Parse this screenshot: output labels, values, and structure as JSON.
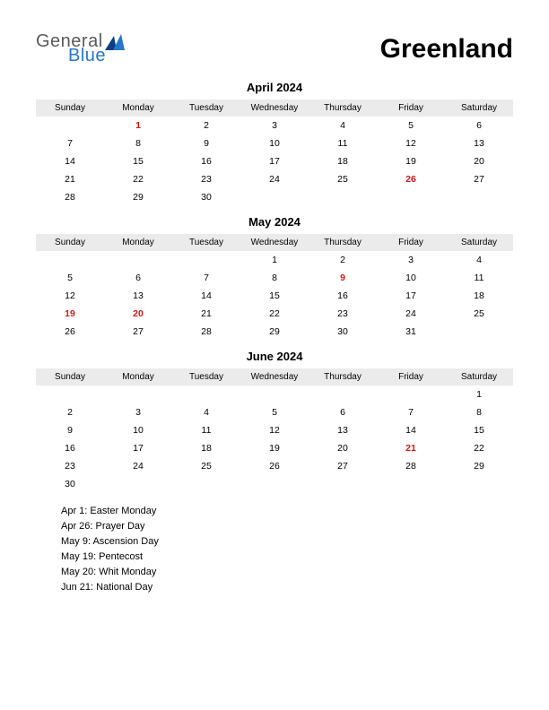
{
  "logo": {
    "text1": "General",
    "text2": "Blue"
  },
  "country": "Greenland",
  "weekday_headers": [
    "Sunday",
    "Monday",
    "Tuesday",
    "Wednesday",
    "Thursday",
    "Friday",
    "Saturday"
  ],
  "colors": {
    "holiday": "#d41616",
    "header_bg": "#ebebeb",
    "logo_gray": "#5a5a5a",
    "logo_blue": "#2776c7",
    "logo_triangle1": "#0b4086",
    "logo_triangle2": "#2776c7"
  },
  "months": [
    {
      "title": "April 2024",
      "weeks": [
        [
          {
            "d": ""
          },
          {
            "d": "1",
            "h": true
          },
          {
            "d": "2"
          },
          {
            "d": "3"
          },
          {
            "d": "4"
          },
          {
            "d": "5"
          },
          {
            "d": "6"
          }
        ],
        [
          {
            "d": "7"
          },
          {
            "d": "8"
          },
          {
            "d": "9"
          },
          {
            "d": "10"
          },
          {
            "d": "11"
          },
          {
            "d": "12"
          },
          {
            "d": "13"
          }
        ],
        [
          {
            "d": "14"
          },
          {
            "d": "15"
          },
          {
            "d": "16"
          },
          {
            "d": "17"
          },
          {
            "d": "18"
          },
          {
            "d": "19"
          },
          {
            "d": "20"
          }
        ],
        [
          {
            "d": "21"
          },
          {
            "d": "22"
          },
          {
            "d": "23"
          },
          {
            "d": "24"
          },
          {
            "d": "25"
          },
          {
            "d": "26",
            "h": true
          },
          {
            "d": "27"
          }
        ],
        [
          {
            "d": "28"
          },
          {
            "d": "29"
          },
          {
            "d": "30"
          },
          {
            "d": ""
          },
          {
            "d": ""
          },
          {
            "d": ""
          },
          {
            "d": ""
          }
        ]
      ]
    },
    {
      "title": "May 2024",
      "weeks": [
        [
          {
            "d": ""
          },
          {
            "d": ""
          },
          {
            "d": ""
          },
          {
            "d": "1"
          },
          {
            "d": "2"
          },
          {
            "d": "3"
          },
          {
            "d": "4"
          }
        ],
        [
          {
            "d": "5"
          },
          {
            "d": "6"
          },
          {
            "d": "7"
          },
          {
            "d": "8"
          },
          {
            "d": "9",
            "h": true
          },
          {
            "d": "10"
          },
          {
            "d": "11"
          }
        ],
        [
          {
            "d": "12"
          },
          {
            "d": "13"
          },
          {
            "d": "14"
          },
          {
            "d": "15"
          },
          {
            "d": "16"
          },
          {
            "d": "17"
          },
          {
            "d": "18"
          }
        ],
        [
          {
            "d": "19",
            "h": true
          },
          {
            "d": "20",
            "h": true
          },
          {
            "d": "21"
          },
          {
            "d": "22"
          },
          {
            "d": "23"
          },
          {
            "d": "24"
          },
          {
            "d": "25"
          }
        ],
        [
          {
            "d": "26"
          },
          {
            "d": "27"
          },
          {
            "d": "28"
          },
          {
            "d": "29"
          },
          {
            "d": "30"
          },
          {
            "d": "31"
          },
          {
            "d": ""
          }
        ]
      ]
    },
    {
      "title": "June 2024",
      "weeks": [
        [
          {
            "d": ""
          },
          {
            "d": ""
          },
          {
            "d": ""
          },
          {
            "d": ""
          },
          {
            "d": ""
          },
          {
            "d": ""
          },
          {
            "d": "1"
          }
        ],
        [
          {
            "d": "2"
          },
          {
            "d": "3"
          },
          {
            "d": "4"
          },
          {
            "d": "5"
          },
          {
            "d": "6"
          },
          {
            "d": "7"
          },
          {
            "d": "8"
          }
        ],
        [
          {
            "d": "9"
          },
          {
            "d": "10"
          },
          {
            "d": "11"
          },
          {
            "d": "12"
          },
          {
            "d": "13"
          },
          {
            "d": "14"
          },
          {
            "d": "15"
          }
        ],
        [
          {
            "d": "16"
          },
          {
            "d": "17"
          },
          {
            "d": "18"
          },
          {
            "d": "19"
          },
          {
            "d": "20"
          },
          {
            "d": "21",
            "h": true
          },
          {
            "d": "22"
          }
        ],
        [
          {
            "d": "23"
          },
          {
            "d": "24"
          },
          {
            "d": "25"
          },
          {
            "d": "26"
          },
          {
            "d": "27"
          },
          {
            "d": "28"
          },
          {
            "d": "29"
          }
        ],
        [
          {
            "d": "30"
          },
          {
            "d": ""
          },
          {
            "d": ""
          },
          {
            "d": ""
          },
          {
            "d": ""
          },
          {
            "d": ""
          },
          {
            "d": ""
          }
        ]
      ]
    }
  ],
  "holiday_list": [
    "Apr 1: Easter Monday",
    "Apr 26: Prayer Day",
    "May 9: Ascension Day",
    "May 19: Pentecost",
    "May 20: Whit Monday",
    "Jun 21: National Day"
  ]
}
